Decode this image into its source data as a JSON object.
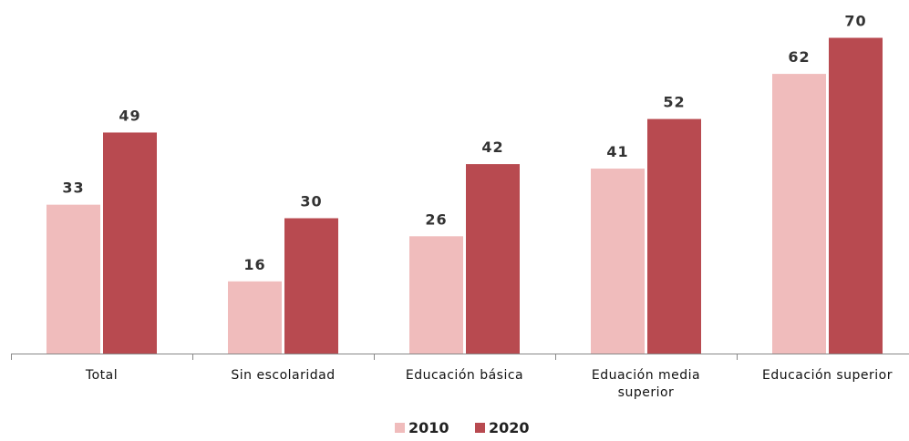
{
  "chart_data": {
    "type": "bar",
    "categories": [
      "Total",
      "Sin escolaridad",
      "Educación básica",
      "Eduación media superior",
      "Educación superior"
    ],
    "series": [
      {
        "name": "2010",
        "color": "#f0bcbc",
        "values": [
          33,
          16,
          26,
          41,
          62
        ]
      },
      {
        "name": "2020",
        "color": "#b84a50",
        "values": [
          49,
          30,
          42,
          52,
          70
        ]
      }
    ],
    "legend": "bottom"
  }
}
